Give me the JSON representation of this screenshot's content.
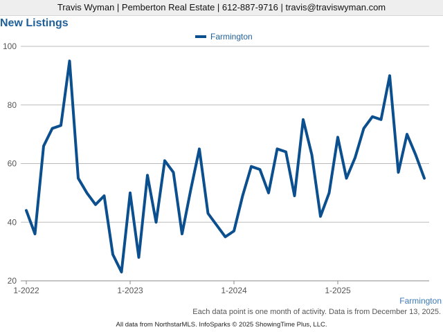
{
  "header": {
    "text": "Travis Wyman | Pemberton Real Estate | 612-887-9716 | travis@traviswyman.com"
  },
  "note": "Each data point is one month of activity. Data is from December 13, 2025.",
  "footer": "All data from NorthstarMLS. InfoSparks © 2025 ShowingTime Plus, LLC.",
  "colors": {
    "series": "#0b4f8e",
    "title": "#1f5f99",
    "grid": "#bbbbbb"
  },
  "chart_data": {
    "type": "line",
    "title": "New Listings",
    "xlabel": "",
    "ylabel": "",
    "ylim": [
      20,
      100
    ],
    "yticks": [
      20,
      40,
      60,
      80,
      100
    ],
    "xticks": [
      {
        "label": "1-2022",
        "index": 0
      },
      {
        "label": "1-2023",
        "index": 12
      },
      {
        "label": "1-2024",
        "index": 24
      },
      {
        "label": "1-2025",
        "index": 36
      }
    ],
    "grid": "horizontal",
    "legend_position": "top-center",
    "end_label": "Farmington",
    "series": [
      {
        "name": "Farmington",
        "values": [
          44,
          36,
          66,
          72,
          73,
          95,
          55,
          50,
          46,
          49,
          29,
          23,
          50,
          28,
          56,
          40,
          61,
          57,
          36,
          51,
          65,
          43,
          39,
          35,
          37,
          49,
          59,
          58,
          50,
          65,
          64,
          49,
          75,
          63,
          42,
          50,
          69,
          55,
          62,
          72,
          76,
          75,
          90,
          57,
          70,
          63,
          55
        ]
      }
    ]
  }
}
